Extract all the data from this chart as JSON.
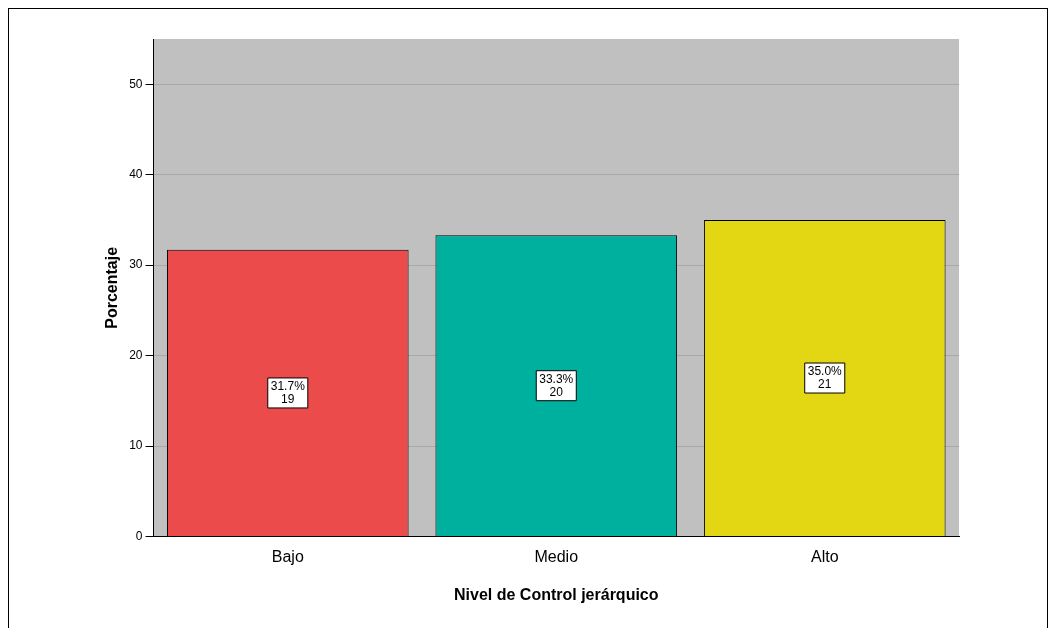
{
  "chart_data": {
    "type": "bar",
    "xlabel": "Nivel de Control jerárquico",
    "ylabel": "Porcentaje",
    "categories": [
      "Bajo",
      "Medio",
      "Alto"
    ],
    "values": [
      31.7,
      33.3,
      35.0
    ],
    "colors": [
      "#ec4b4b",
      "#00b09e",
      "#e3d713"
    ],
    "value_labels": [
      "31.7%\n19",
      "33.3%\n20",
      "35.0%\n21"
    ],
    "ylim": [
      0,
      55
    ],
    "yticks": [
      0,
      10,
      20,
      30,
      40,
      50
    ],
    "grid": "y",
    "legend": false
  }
}
